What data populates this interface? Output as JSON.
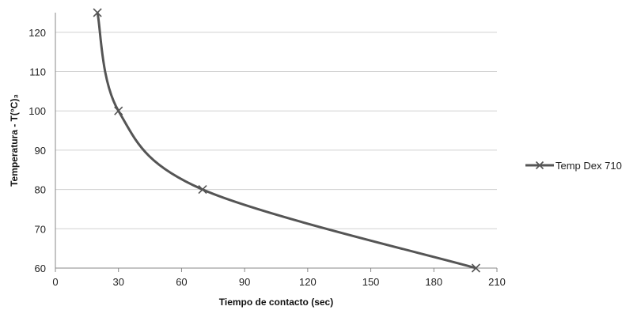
{
  "chart_data": {
    "type": "line",
    "title": "",
    "xlabel": "Tiempo de contacto (sec)",
    "ylabel": "Temperatura - T(°C)₃",
    "xlim": [
      0,
      210
    ],
    "ylim": [
      60,
      125
    ],
    "xticks": [
      0,
      30,
      60,
      90,
      120,
      150,
      180,
      210
    ],
    "yticks": [
      60,
      70,
      80,
      90,
      100,
      110,
      120
    ],
    "grid": "horizontal",
    "legend_position": "right",
    "series": [
      {
        "name": "Temp Dex 710",
        "color": "#555555",
        "marker": "x",
        "smooth": true,
        "x": [
          20,
          30,
          70,
          200
        ],
        "y": [
          125,
          100,
          80,
          60
        ]
      }
    ]
  }
}
